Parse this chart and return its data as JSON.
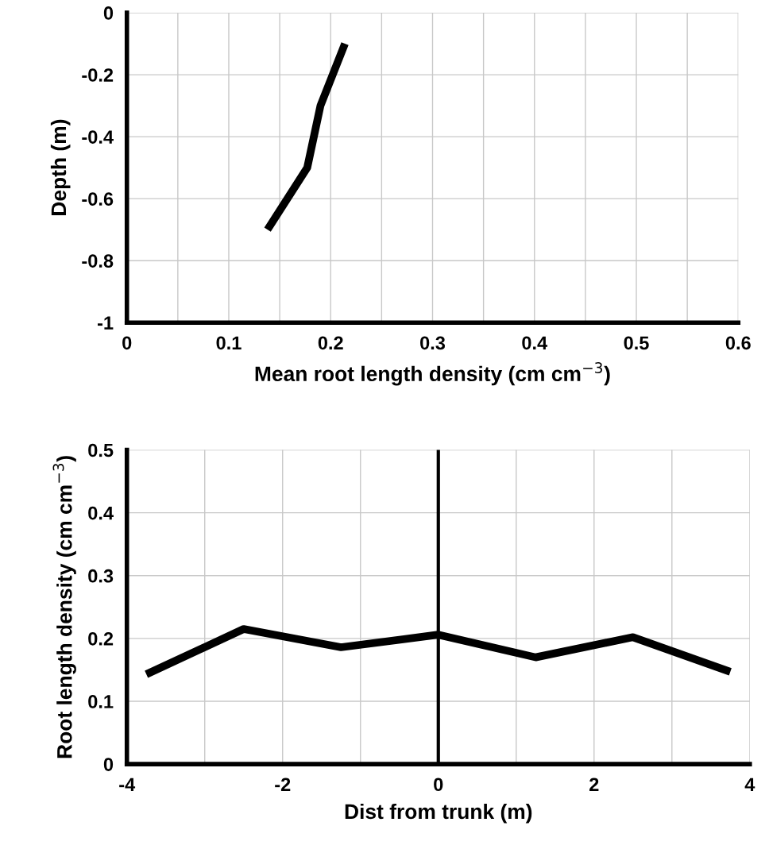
{
  "chart_data": [
    {
      "type": "line",
      "xlabel": "Mean root length density (cm cm$^{−3}$)",
      "ylabel": "Depth (m)",
      "grid": true,
      "marker": "none",
      "line_style": "solid",
      "series": [
        {
          "color": "#000000",
          "x": [
            0.214,
            0.19,
            0.177,
            0.138
          ],
          "values": [
            -0.1,
            -0.3,
            -0.5,
            -0.7
          ]
        }
      ],
      "xlim": [
        0,
        0.6
      ],
      "ylim": [
        -1,
        0
      ],
      "xticks": [
        0,
        {
          "value": 0.05,
          "label": null
        },
        0.1,
        {
          "value": 0.15,
          "label": null
        },
        0.2,
        {
          "value": 0.25,
          "label": null
        },
        0.3,
        {
          "value": 0.35,
          "label": null
        },
        0.4,
        {
          "value": 0.45,
          "label": null
        },
        0.5,
        {
          "value": 0.55,
          "label": null
        },
        0.6
      ],
      "yticks": [
        -1,
        -0.8,
        -0.6,
        -0.4,
        -0.2,
        0
      ]
    },
    {
      "type": "line",
      "xlabel": "Dist from trunk (m)",
      "ylabel": "Root length density (cm cm$^{−3}$)",
      "grid": true,
      "marker": "none",
      "line_style": "solid",
      "series": [
        {
          "color": "#000000",
          "x": [
            -3.75,
            -2.5,
            -1.25,
            0,
            1.25,
            2.5,
            3.75
          ],
          "values": [
            0.143,
            0.215,
            0.186,
            0.206,
            0.17,
            0.202,
            0.147
          ]
        }
      ],
      "xlim": [
        -4,
        4
      ],
      "ylim": [
        0,
        0.5
      ],
      "xticks": [
        -4,
        {
          "value": -3,
          "label": null
        },
        -2,
        {
          "value": -1,
          "label": null
        },
        0,
        {
          "value": 1,
          "label": null
        },
        2,
        {
          "value": 3,
          "label": null
        },
        4
      ],
      "yticks": [
        0,
        0.1,
        0.2,
        0.3,
        0.4,
        0.5
      ],
      "ref_lines": [
        {
          "axis": "x",
          "value": 0,
          "color": "#000000"
        }
      ]
    }
  ]
}
